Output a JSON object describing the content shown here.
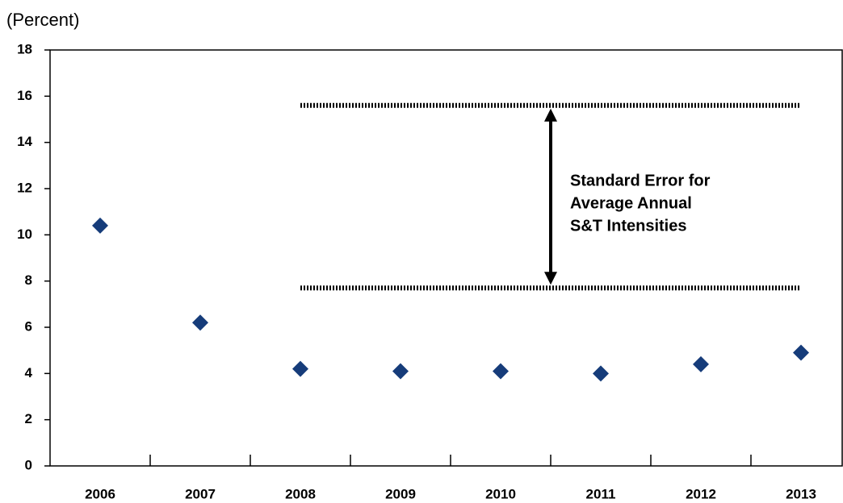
{
  "chart_data": {
    "type": "scatter",
    "y_label": "(Percent)",
    "categories": [
      "2006",
      "2007",
      "2008",
      "2009",
      "2010",
      "2011",
      "2012",
      "2013"
    ],
    "values": [
      10.4,
      6.2,
      4.2,
      4.1,
      4.1,
      4.0,
      4.4,
      4.9
    ],
    "color": "#163c7a",
    "ylim": [
      0,
      18
    ],
    "yticks": [
      0,
      2,
      4,
      6,
      8,
      10,
      12,
      14,
      16,
      18
    ],
    "error_band": {
      "upper": 15.6,
      "lower": 7.7
    },
    "annotation": [
      "Standard Error for",
      "Average Annual",
      "S&T Intensities"
    ]
  }
}
